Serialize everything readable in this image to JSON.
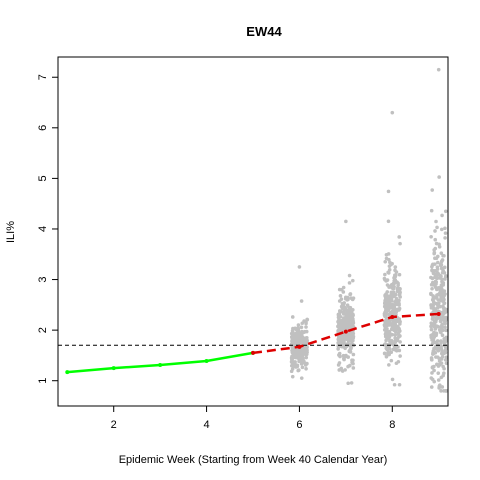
{
  "chart_data": {
    "type": "scatter",
    "title": "EW44",
    "xlabel": "Epidemic Week (Starting from Week 40 Calendar Year)",
    "ylabel": "ILI%",
    "xlim": [
      0.8,
      9.2
    ],
    "ylim": [
      0.5,
      7.4
    ],
    "x_ticks": [
      2,
      4,
      6,
      8
    ],
    "y_ticks": [
      1,
      2,
      3,
      4,
      5,
      6,
      7
    ],
    "grid": false,
    "legend": "none",
    "reference_line": {
      "y": 1.7,
      "style": "dashed",
      "color": "#000000"
    },
    "series": [
      {
        "role": "observed",
        "style": "solid",
        "color": "#00ff00",
        "x": [
          1,
          2,
          3,
          4,
          5
        ],
        "y": [
          1.17,
          1.25,
          1.31,
          1.39,
          1.55
        ]
      },
      {
        "role": "forecast-median",
        "style": "dashed",
        "color": "#dd0000",
        "x": [
          5,
          6,
          7,
          8,
          9
        ],
        "y": [
          1.55,
          1.67,
          1.97,
          2.26,
          2.32
        ]
      }
    ],
    "simulations": {
      "color": "#c0c0c0",
      "x": [
        6,
        7,
        8,
        9
      ],
      "median": [
        1.67,
        1.97,
        2.26,
        2.32
      ],
      "min": [
        1.05,
        0.95,
        0.92,
        0.8
      ],
      "max": [
        3.25,
        4.15,
        6.3,
        7.15
      ],
      "spread": [
        0.22,
        0.38,
        0.62,
        0.8
      ]
    }
  }
}
